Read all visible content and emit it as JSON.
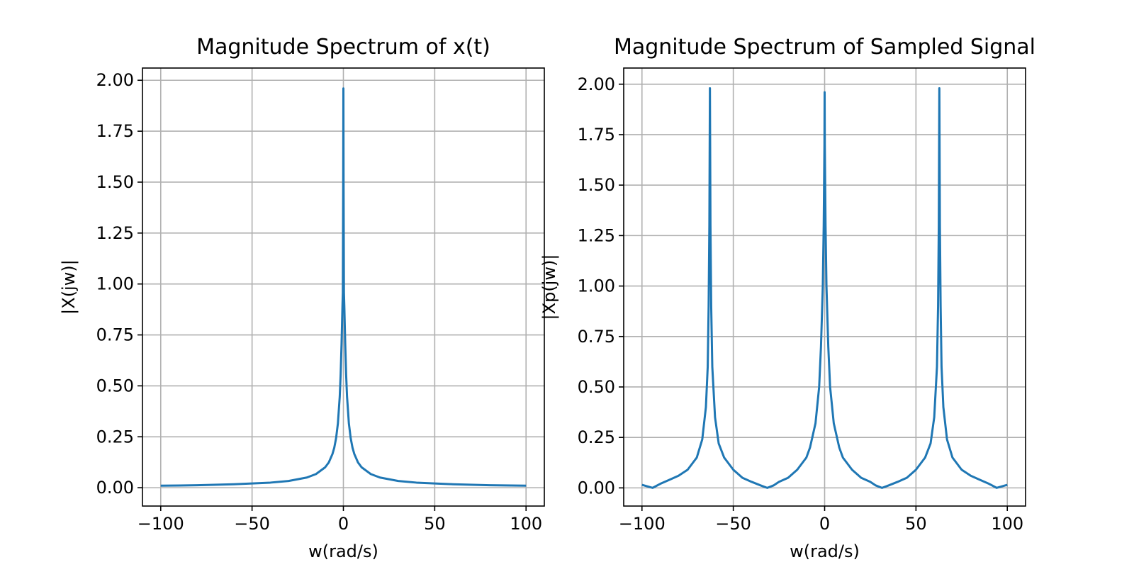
{
  "colors": {
    "series": "#1f77b4",
    "grid": "#b0b0b0"
  },
  "chart_data": [
    {
      "type": "line",
      "title": "Magnitude Spectrum of x(t)",
      "xlabel": "w(rad/s)",
      "ylabel": "|X(jw)|",
      "xlim": [
        -110,
        110
      ],
      "ylim": [
        -0.09,
        2.06
      ],
      "grid": true,
      "xticks": [
        -100,
        -50,
        0,
        50,
        100
      ],
      "xtick_labels": [
        "−100",
        "−50",
        "0",
        "50",
        "100"
      ],
      "yticks": [
        0.0,
        0.25,
        0.5,
        0.75,
        1.0,
        1.25,
        1.5,
        1.75,
        2.0
      ],
      "ytick_labels": [
        "0.00",
        "0.25",
        "0.50",
        "0.75",
        "1.00",
        "1.25",
        "1.50",
        "1.75",
        "2.00"
      ],
      "series": [
        {
          "color": "#1f77b4",
          "x": [
            -100,
            -80,
            -60,
            -40,
            -30,
            -20,
            -15,
            -10,
            -8,
            -6,
            -5,
            -4,
            -3,
            -2,
            -1.5,
            -1,
            -0.7,
            -0.5,
            -0.3,
            -0.1,
            0,
            0.1,
            0.3,
            0.5,
            0.7,
            1,
            1.5,
            2,
            3,
            4,
            5,
            6,
            8,
            10,
            15,
            20,
            30,
            40,
            60,
            80,
            100
          ],
          "y": [
            0.01,
            0.012,
            0.017,
            0.025,
            0.033,
            0.05,
            0.067,
            0.1,
            0.124,
            0.165,
            0.196,
            0.243,
            0.316,
            0.447,
            0.555,
            0.707,
            0.82,
            0.894,
            0.958,
            1.5,
            1.96,
            1.5,
            0.958,
            0.894,
            0.82,
            0.707,
            0.555,
            0.447,
            0.316,
            0.243,
            0.196,
            0.165,
            0.124,
            0.1,
            0.067,
            0.05,
            0.033,
            0.025,
            0.017,
            0.012,
            0.01
          ]
        }
      ]
    },
    {
      "type": "line",
      "title": "Magnitude Spectrum of Sampled Signal",
      "xlabel": "w(rad/s)",
      "ylabel": "|Xp(jw)|",
      "xlim": [
        -110,
        110
      ],
      "ylim": [
        -0.09,
        2.08
      ],
      "grid": true,
      "xticks": [
        -100,
        -50,
        0,
        50,
        100
      ],
      "xtick_labels": [
        "−100",
        "−50",
        "0",
        "50",
        "100"
      ],
      "yticks": [
        0.0,
        0.25,
        0.5,
        0.75,
        1.0,
        1.25,
        1.5,
        1.75,
        2.0
      ],
      "ytick_labels": [
        "0.00",
        "0.25",
        "0.50",
        "0.75",
        "1.00",
        "1.25",
        "1.50",
        "1.75",
        "2.00"
      ],
      "series": [
        {
          "color": "#1f77b4",
          "x": [
            -100,
            -94.2,
            -90,
            -85,
            -80,
            -75,
            -70,
            -67,
            -65,
            -64,
            -63.5,
            -63.1,
            -62.8,
            -62.5,
            -62.1,
            -61.5,
            -60,
            -58,
            -55,
            -50,
            -45,
            -40,
            -35,
            -31.4,
            -28,
            -25,
            -20,
            -15,
            -10,
            -8,
            -5,
            -3,
            -2,
            -1,
            -0.5,
            -0.1,
            0,
            0.1,
            0.5,
            1,
            2,
            3,
            5,
            8,
            10,
            15,
            20,
            25,
            28,
            31.4,
            35,
            40,
            45,
            50,
            55,
            58,
            60,
            61.5,
            62.1,
            62.5,
            62.8,
            63.1,
            63.5,
            64,
            65,
            67,
            70,
            75,
            80,
            85,
            90,
            94.2,
            100
          ],
          "y": [
            0.015,
            0.0,
            0.02,
            0.04,
            0.06,
            0.09,
            0.15,
            0.24,
            0.4,
            0.6,
            0.9,
            1.3,
            1.98,
            1.3,
            0.9,
            0.6,
            0.35,
            0.22,
            0.15,
            0.09,
            0.05,
            0.03,
            0.012,
            0.0,
            0.012,
            0.03,
            0.05,
            0.09,
            0.15,
            0.2,
            0.32,
            0.5,
            0.7,
            1.0,
            1.3,
            1.7,
            1.96,
            1.7,
            1.3,
            1.0,
            0.7,
            0.5,
            0.32,
            0.2,
            0.15,
            0.09,
            0.05,
            0.03,
            0.012,
            0.0,
            0.012,
            0.03,
            0.05,
            0.09,
            0.15,
            0.22,
            0.35,
            0.6,
            0.9,
            1.3,
            1.98,
            1.3,
            0.9,
            0.6,
            0.4,
            0.24,
            0.15,
            0.09,
            0.06,
            0.04,
            0.02,
            0.0,
            0.015
          ]
        }
      ]
    }
  ]
}
